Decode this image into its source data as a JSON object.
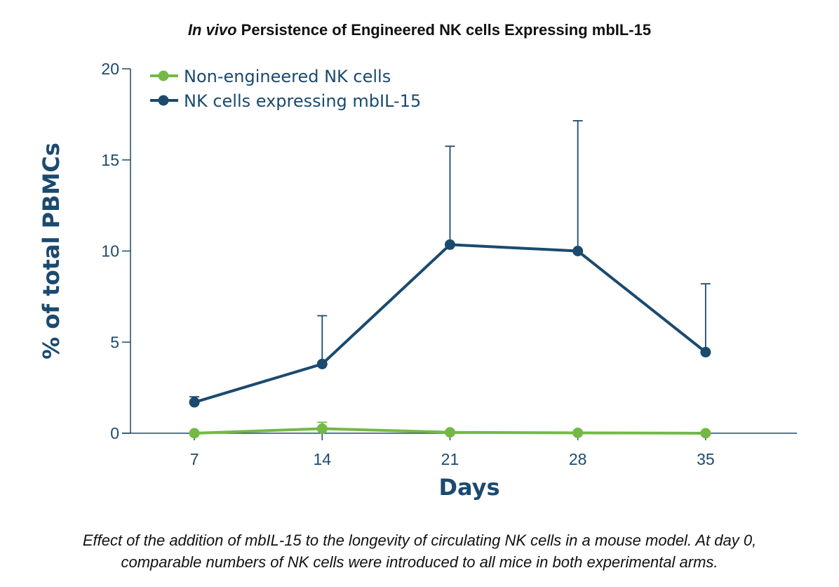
{
  "chart_data": {
    "type": "line",
    "title_italic": "In vivo",
    "title_rest": " Persistence of Engineered NK cells Expressing mbIL-15",
    "xlabel": "Days",
    "ylabel": "% of total PBMCs",
    "x": [
      7,
      14,
      21,
      28,
      35
    ],
    "x_tick_labels": [
      "7",
      "14",
      "21",
      "28",
      "35"
    ],
    "xlim": [
      3.5,
      40
    ],
    "ylim": [
      0,
      20
    ],
    "y_ticks": [
      0,
      5,
      10,
      15,
      20
    ],
    "y_tick_labels": [
      "0",
      "5",
      "10",
      "15",
      "20"
    ],
    "legend_position": "top-left",
    "series": [
      {
        "name": "Non-engineered NK cells",
        "color": "#74b944",
        "values": [
          0.0,
          0.25,
          0.05,
          0.02,
          0.0
        ],
        "error_upper": [
          0.0,
          0.6,
          0.0,
          0.0,
          0.0
        ]
      },
      {
        "name": "NK cells expressing mbIL-15",
        "color": "#1b4a6e",
        "values": [
          1.7,
          3.8,
          10.35,
          10.0,
          4.45
        ],
        "error_upper": [
          2.0,
          6.45,
          15.75,
          17.15,
          8.2
        ]
      }
    ]
  },
  "caption": {
    "line1": "Effect of the addition of mbIL-15 to the longevity of circulating NK cells in a mouse model. At day 0,",
    "line2": "comparable numbers of NK cells were introduced to all mice in both experimental arms."
  }
}
